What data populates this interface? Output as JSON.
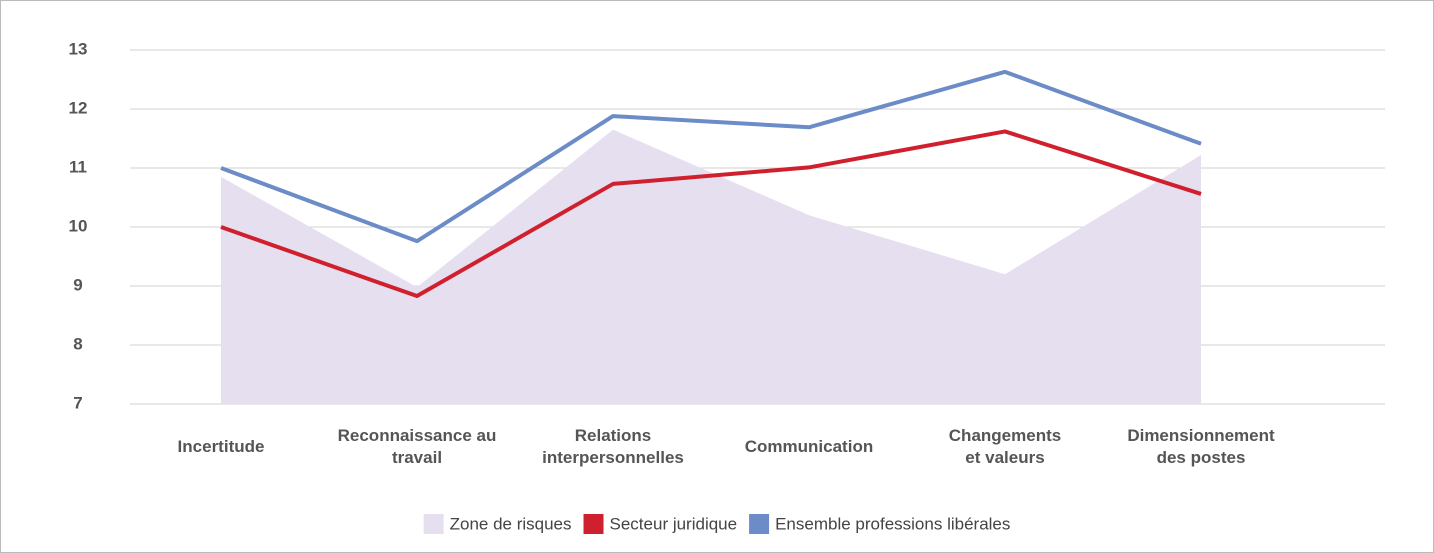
{
  "chart_data": {
    "type": "line",
    "categories": [
      "Incertitude",
      "Reconnaissance au\ntravail",
      "Relations\ninterpersonnelles",
      "Communication",
      "Changements\net valeurs",
      "Dimensionnement\ndes postes"
    ],
    "series": [
      {
        "name": "Zone de risques",
        "type": "area",
        "color": "#e6dff0",
        "values": [
          10.85,
          8.98,
          11.65,
          10.2,
          9.2,
          11.22
        ]
      },
      {
        "name": "Secteur juridique",
        "type": "line",
        "color": "#d0202e",
        "values": [
          10.0,
          8.83,
          10.73,
          11.01,
          11.62,
          10.56
        ]
      },
      {
        "name": "Ensemble professions libérales",
        "type": "line",
        "color": "#6b8cc7",
        "values": [
          11.0,
          9.76,
          11.88,
          11.69,
          12.63,
          11.41
        ]
      }
    ],
    "ylim": [
      7,
      13
    ],
    "yticks": [
      7,
      8,
      9,
      10,
      11,
      12,
      13
    ],
    "grid": true,
    "legend": "bottom"
  }
}
